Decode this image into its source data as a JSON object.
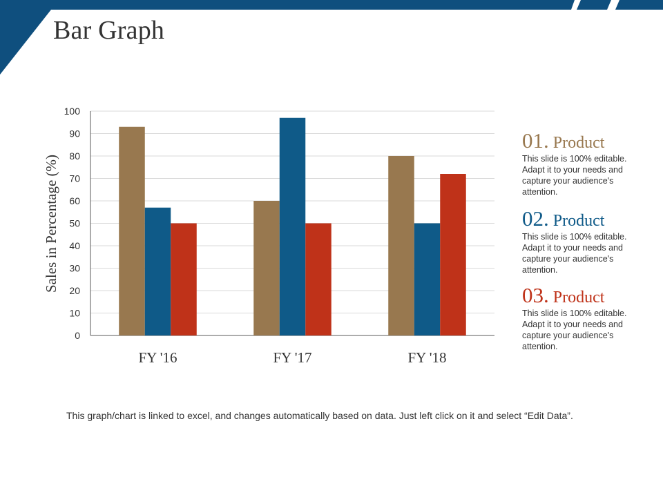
{
  "slide": {
    "title": "Bar Graph",
    "footnote": "This graph/chart is linked to excel, and changes automatically based on data. Just left click on it and select “Edit Data”."
  },
  "colors": {
    "brand": "#0f4f7e",
    "series1": "#98784f",
    "series2": "#0f5a88",
    "series3": "#bf3219"
  },
  "legend": [
    {
      "number": "01.",
      "name": "Product",
      "description": "This slide is 100% editable. Adapt it to your needs and capture your audience's attention.",
      "color": "#98784f"
    },
    {
      "number": "02.",
      "name": "Product",
      "description": "This slide is 100% editable. Adapt it to your needs and capture your audience's attention.",
      "color": "#0f5a88"
    },
    {
      "number": "03.",
      "name": "Product",
      "description": "This slide is 100% editable. Adapt it to your needs and capture your audience's attention.",
      "color": "#bf3219"
    }
  ],
  "chart_data": {
    "type": "bar",
    "title": "",
    "xlabel": "",
    "ylabel": "Sales in Percentage (%)",
    "categories": [
      "FY '16",
      "FY '17",
      "FY '18"
    ],
    "series": [
      {
        "name": "Product 01",
        "values": [
          93,
          60,
          80
        ],
        "color": "#98784f"
      },
      {
        "name": "Product 02",
        "values": [
          57,
          97,
          50
        ],
        "color": "#0f5a88"
      },
      {
        "name": "Product 03",
        "values": [
          50,
          50,
          72
        ],
        "color": "#bf3219"
      }
    ],
    "ylim": [
      0,
      100
    ],
    "yticks": [
      0,
      10,
      20,
      30,
      40,
      50,
      60,
      70,
      80,
      90,
      100
    ],
    "grid": true,
    "legend_position": "right"
  }
}
